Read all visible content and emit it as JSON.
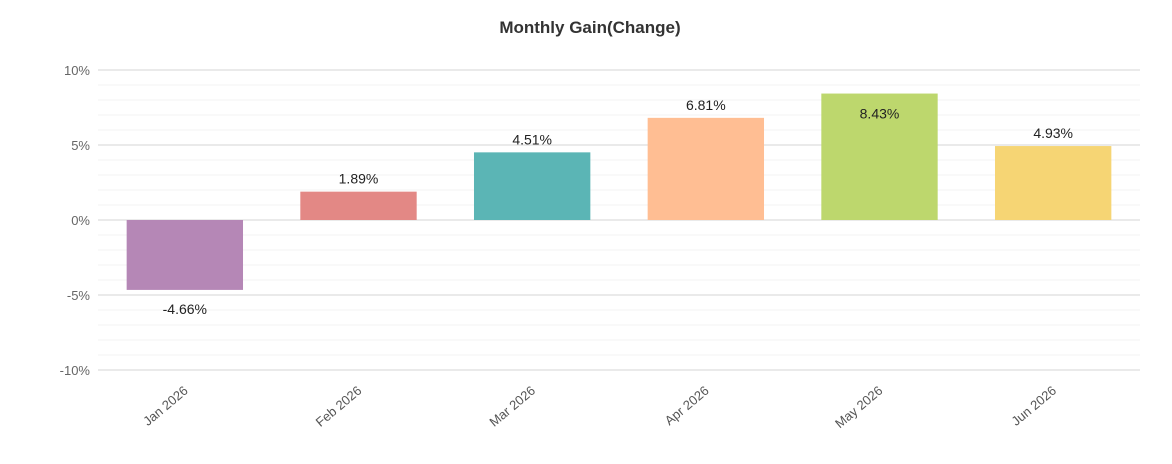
{
  "chart_data": {
    "type": "bar",
    "title": "Monthly Gain(Change)",
    "xlabel": "",
    "ylabel": "",
    "categories": [
      "Jan 2026",
      "Feb 2026",
      "Mar 2026",
      "Apr 2026",
      "May 2026",
      "Jun 2026"
    ],
    "values": [
      -4.66,
      1.89,
      4.51,
      6.81,
      8.43,
      4.93
    ],
    "data_labels": [
      "-4.66%",
      "1.89%",
      "4.51%",
      "6.81%",
      "8.43%",
      "4.93%"
    ],
    "colors": [
      "#b587b6",
      "#e38885",
      "#5bb5b5",
      "#ffbe93",
      "#bdd76d",
      "#f6d574"
    ],
    "ylim": [
      -10,
      10
    ],
    "yticks": [
      10,
      5,
      0,
      -5,
      -10
    ],
    "ytick_labels": [
      "10%",
      "5%",
      "0%",
      "-5%",
      "-10%"
    ],
    "grid": true,
    "legend": "none"
  }
}
